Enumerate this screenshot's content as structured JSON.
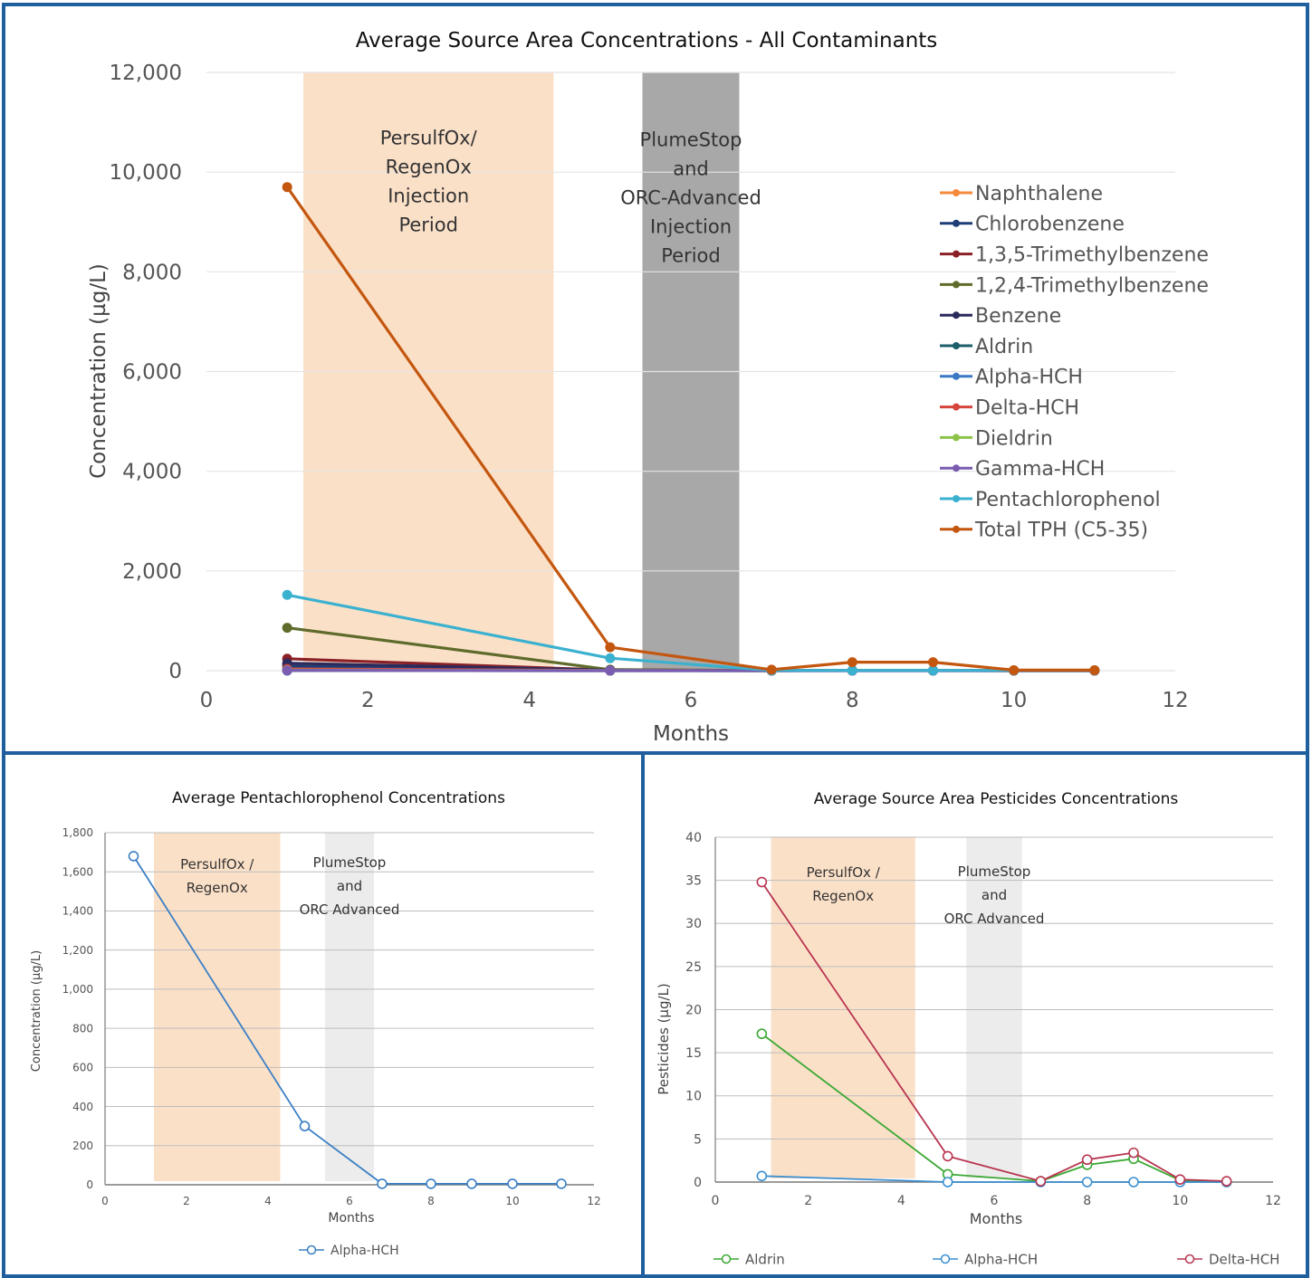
{
  "colors": {
    "frame": "#1f5f9e",
    "band_orange": "#fbe0c8",
    "band_gray": "#a8a8a8",
    "band_light_gray": "#ececec"
  },
  "chart_data": [
    {
      "type": "line",
      "title": "Average Source Area Concentrations - All Contaminants",
      "xlabel": "Months",
      "ylabel": "Concentration (µg/L)",
      "xlim": [
        0,
        12
      ],
      "ylim": [
        0,
        12000
      ],
      "xticks": [
        0,
        2,
        4,
        6,
        8,
        10,
        12
      ],
      "xtick_labels": [
        "0",
        "2",
        "4",
        "6",
        "8",
        "10",
        "12"
      ],
      "yticks": [
        0,
        2000,
        4000,
        6000,
        8000,
        10000,
        12000
      ],
      "ytick_labels": [
        "0",
        "2,000",
        "4,000",
        "6,000",
        "8,000",
        "10,000",
        "12,000"
      ],
      "grid": true,
      "legend_position": "right",
      "bands": [
        {
          "from": 1.2,
          "to": 4.3,
          "color": "#fbe0c8",
          "label_lines": [
            "PersulfOx/",
            "RegenOx",
            "Injection",
            "Period"
          ]
        },
        {
          "from": 5.4,
          "to": 6.6,
          "color": "#a8a8a8",
          "label_lines": [
            "PlumeStop",
            "and",
            "ORC-Advanced",
            "Injection",
            "Period"
          ]
        }
      ],
      "series": [
        {
          "name": "Naphthalene",
          "color": "#f58a3c",
          "x": [
            1,
            5,
            7,
            8,
            9,
            10,
            11
          ],
          "values": [
            120,
            10,
            5,
            5,
            5,
            5,
            5
          ]
        },
        {
          "name": "Chlorobenzene",
          "color": "#1f3e78",
          "x": [
            1,
            5,
            7,
            8,
            9,
            10,
            11
          ],
          "values": [
            90,
            5,
            5,
            5,
            5,
            5,
            5
          ]
        },
        {
          "name": "1,3,5-Trimethylbenzene",
          "color": "#8b2026",
          "x": [
            1,
            5,
            7,
            8,
            9,
            10,
            11
          ],
          "values": [
            240,
            10,
            5,
            5,
            5,
            5,
            5
          ]
        },
        {
          "name": "1,2,4-Trimethylbenzene",
          "color": "#5e6b2a",
          "x": [
            1,
            5,
            7,
            8,
            9,
            10,
            11
          ],
          "values": [
            860,
            20,
            5,
            5,
            5,
            5,
            5
          ]
        },
        {
          "name": "Benzene",
          "color": "#2c2a5c",
          "x": [
            1,
            5,
            7,
            8,
            9,
            10,
            11
          ],
          "values": [
            150,
            10,
            5,
            5,
            5,
            5,
            5
          ]
        },
        {
          "name": "Aldrin",
          "color": "#1c5f6b",
          "x": [
            1,
            5,
            7,
            8,
            9,
            10,
            11
          ],
          "values": [
            17,
            1,
            0,
            2,
            3,
            0,
            0
          ]
        },
        {
          "name": "Alpha-HCH",
          "color": "#3a78c4",
          "x": [
            1,
            5,
            7,
            8,
            9,
            10,
            11
          ],
          "values": [
            1,
            0,
            0,
            0,
            0,
            0,
            0
          ]
        },
        {
          "name": "Delta-HCH",
          "color": "#d6443c",
          "x": [
            1,
            5,
            7,
            8,
            9,
            10,
            11
          ],
          "values": [
            35,
            3,
            0,
            3,
            3,
            0,
            0
          ]
        },
        {
          "name": "Dieldrin",
          "color": "#8dc34a",
          "x": [
            1,
            5,
            7,
            8,
            9,
            10,
            11
          ],
          "values": [
            10,
            1,
            0,
            1,
            1,
            0,
            0
          ]
        },
        {
          "name": "Gamma-HCH",
          "color": "#7a5cb0",
          "x": [
            1,
            5,
            7,
            8,
            9,
            10,
            11
          ],
          "values": [
            5,
            0,
            0,
            0,
            0,
            0,
            0
          ]
        },
        {
          "name": "Pentachlorophenol",
          "color": "#3bb1d0",
          "x": [
            1,
            5,
            7,
            8,
            9,
            10,
            11
          ],
          "values": [
            1520,
            250,
            5,
            5,
            5,
            5,
            5
          ]
        },
        {
          "name": "Total TPH (C5-35)",
          "color": "#c4570f",
          "x": [
            1,
            5,
            7,
            8,
            9,
            10,
            11
          ],
          "values": [
            9700,
            470,
            20,
            170,
            170,
            10,
            10
          ]
        }
      ]
    },
    {
      "type": "line",
      "title": "Average Pentachlorophenol Concentrations",
      "xlabel": "Months",
      "ylabel": "Concentration (µg/L)",
      "xlim": [
        0,
        12
      ],
      "ylim": [
        0,
        1800
      ],
      "xticks": [
        0,
        2,
        4,
        6,
        8,
        10,
        12
      ],
      "xtick_labels": [
        "0",
        "2",
        "4",
        "6",
        "8",
        "10",
        "12"
      ],
      "yticks": [
        0,
        200,
        400,
        600,
        800,
        1000,
        1200,
        1400,
        1600,
        1800
      ],
      "ytick_labels": [
        "0",
        "200",
        "400",
        "600",
        "800",
        "1,000",
        "1,200",
        "1,400",
        "1,600",
        "1,800"
      ],
      "grid": true,
      "legend_position": "bottom",
      "bands": [
        {
          "from": 1.2,
          "to": 4.3,
          "color": "#fbe0c8",
          "label_lines": [
            "PersulfOx /",
            "RegenOx"
          ]
        },
        {
          "from": 5.4,
          "to": 6.6,
          "color": "#ececec",
          "label_lines": [
            "PlumeStop",
            "and",
            "ORC Advanced"
          ]
        }
      ],
      "series": [
        {
          "name": "Alpha-HCH",
          "color": "#3a7fc4",
          "x": [
            0.7,
            4.9,
            6.8,
            8,
            9,
            10,
            11.2
          ],
          "values": [
            1680,
            300,
            5,
            5,
            5,
            5,
            5
          ]
        }
      ]
    },
    {
      "type": "line",
      "title": "Average Source Area Pesticides Concentrations",
      "xlabel": "Months",
      "ylabel": "Pesticides (µg/L)",
      "xlim": [
        0,
        12
      ],
      "ylim": [
        0,
        40
      ],
      "xticks": [
        0,
        2,
        4,
        6,
        8,
        10,
        12
      ],
      "xtick_labels": [
        "0",
        "2",
        "4",
        "6",
        "8",
        "10",
        "12"
      ],
      "yticks": [
        0,
        5,
        10,
        15,
        20,
        25,
        30,
        35,
        40
      ],
      "ytick_labels": [
        "0",
        "5",
        "10",
        "15",
        "20",
        "25",
        "30",
        "35",
        "40"
      ],
      "grid": true,
      "legend_position": "bottom",
      "bands": [
        {
          "from": 1.2,
          "to": 4.3,
          "color": "#fbe0c8",
          "label_lines": [
            "PersulfOx /",
            "RegenOx"
          ]
        },
        {
          "from": 5.4,
          "to": 6.6,
          "color": "#ececec",
          "label_lines": [
            "PlumeStop",
            "and",
            "ORC Advanced"
          ]
        }
      ],
      "series": [
        {
          "name": "Aldrin",
          "color": "#3aa832",
          "x": [
            1,
            5,
            7,
            8,
            9,
            10,
            11
          ],
          "values": [
            17.2,
            0.9,
            0.1,
            2.0,
            2.7,
            0.2,
            0.0
          ]
        },
        {
          "name": "Alpha-HCH",
          "color": "#3a8fd0",
          "x": [
            1,
            5,
            7,
            8,
            9,
            10,
            11
          ],
          "values": [
            0.7,
            0.0,
            0.0,
            0.0,
            0.0,
            0.0,
            0.0
          ]
        },
        {
          "name": "Delta-HCH",
          "color": "#b83550",
          "x": [
            1,
            5,
            7,
            8,
            9,
            10,
            11
          ],
          "values": [
            34.8,
            3.0,
            0.1,
            2.6,
            3.4,
            0.3,
            0.1
          ]
        }
      ]
    }
  ]
}
